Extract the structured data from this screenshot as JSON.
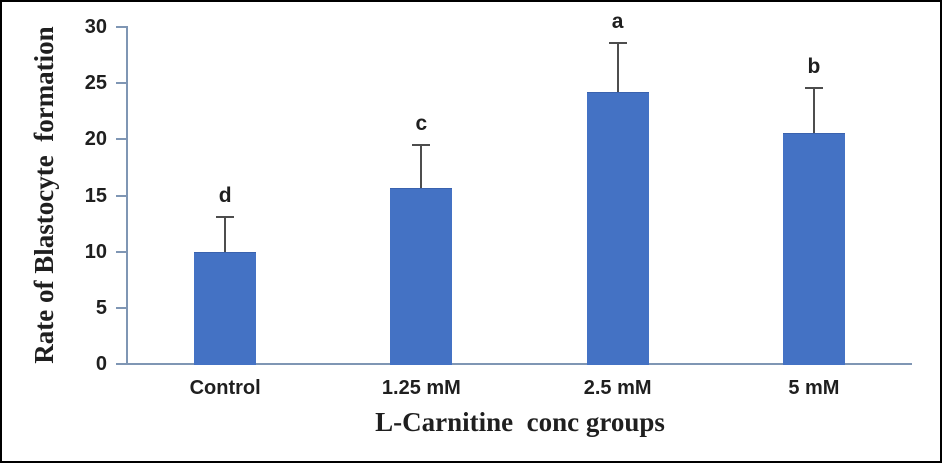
{
  "chart_data": {
    "type": "bar",
    "title": "",
    "xlabel": "L-Carnitine  conc groups",
    "ylabel": "Rate of Blastocyte  formation",
    "categories": [
      "Control",
      "1.25 mM",
      "2.5 mM",
      "5 mM"
    ],
    "values": [
      10.0,
      15.7,
      24.2,
      20.6
    ],
    "error_plus": [
      3.1,
      3.8,
      4.4,
      4.0
    ],
    "significance_letters": [
      "d",
      "c",
      "a",
      "b"
    ],
    "ylim": [
      0,
      30
    ],
    "yticks": [
      0,
      5,
      10,
      15,
      20,
      25,
      30
    ],
    "grid": false,
    "legend": false
  },
  "colors": {
    "bar_fill": "#4472C4",
    "bar_edge": "#3A62AE",
    "axis_line": "#7F96B4",
    "error_bar": "#4D4D4D",
    "text": "#1F1F1F",
    "background": "#FFFFFF",
    "frame_border": "#000000"
  }
}
